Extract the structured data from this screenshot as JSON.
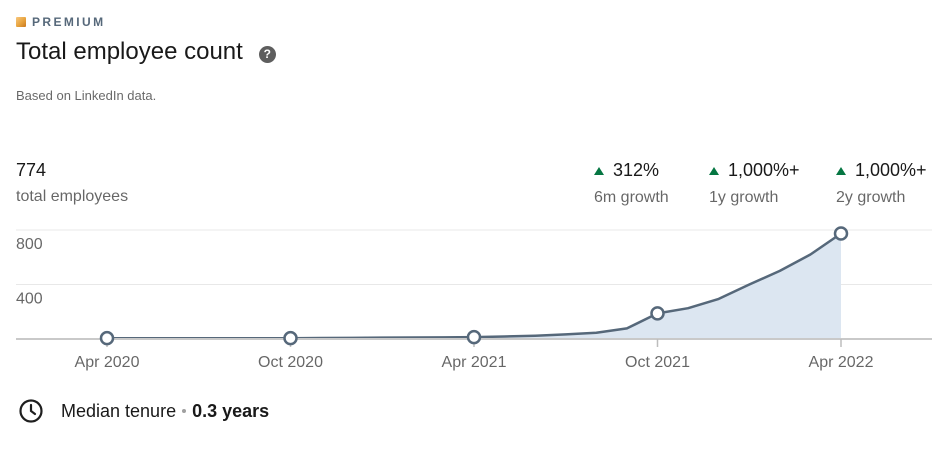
{
  "badge": {
    "label": "PREMIUM"
  },
  "header": {
    "title": "Total employee count",
    "help_icon": "question-mark-circle-icon",
    "subtitle": "Based on LinkedIn data."
  },
  "summary": {
    "total": "774",
    "total_label": "total employees",
    "growth": [
      {
        "value": "312%",
        "label": "6m growth"
      },
      {
        "value": "1,000%+",
        "label": "1y growth"
      },
      {
        "value": "1,000%+",
        "label": "2y growth"
      }
    ],
    "up_color": "#057642"
  },
  "chart_data": {
    "type": "area",
    "x": [
      "2020-04",
      "2020-05",
      "2020-06",
      "2020-07",
      "2020-08",
      "2020-09",
      "2020-10",
      "2020-11",
      "2020-12",
      "2021-01",
      "2021-02",
      "2021-03",
      "2021-04",
      "2021-05",
      "2021-06",
      "2021-07",
      "2021-08",
      "2021-09",
      "2021-10",
      "2021-11",
      "2021-12",
      "2022-01",
      "2022-02",
      "2022-03",
      "2022-04"
    ],
    "series": [
      {
        "values": [
          6,
          6,
          6,
          6,
          6,
          6,
          6,
          7,
          8,
          10,
          11,
          12,
          14,
          18,
          24,
          34,
          46,
          78,
          188,
          226,
          294,
          400,
          500,
          620,
          774
        ]
      }
    ],
    "x_tick_labels": [
      "Apr 2020",
      "Oct 2020",
      "Apr 2021",
      "Oct 2021",
      "Apr 2022"
    ],
    "x_tick_dates": [
      "2020-04",
      "2020-10",
      "2021-04",
      "2021-10",
      "2022-04"
    ],
    "y_tick_labels": [
      "800",
      "400"
    ],
    "y_ticks": [
      800,
      400
    ],
    "ylim": [
      0,
      800
    ],
    "marker_dates": [
      "2020-04",
      "2020-10",
      "2021-04",
      "2021-10",
      "2022-04"
    ],
    "grid": true,
    "line_color": "#56687a",
    "fill_color": "#dce6f1"
  },
  "tenure": {
    "icon": "clock-icon",
    "label": "Median tenure",
    "value": "0.3 years"
  }
}
